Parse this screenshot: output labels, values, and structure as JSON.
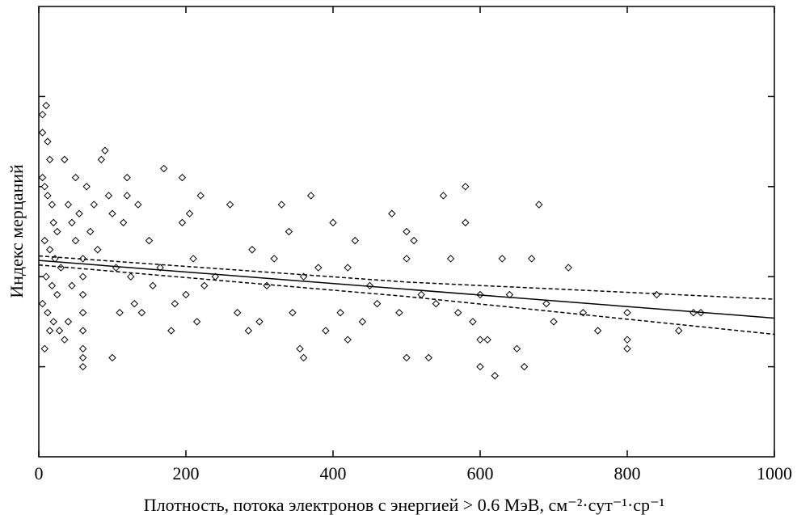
{
  "chart_data": {
    "type": "scatter",
    "xlabel": "Плотность, потока электронов с энергией > 0.6 МэВ, см⁻²·сут⁻¹·ср⁻¹",
    "ylabel": "Индекс мерцаний",
    "xlim": [
      0,
      1000
    ],
    "xticks": [
      0,
      200,
      400,
      600,
      800,
      1000
    ],
    "ylim": [
      0,
      5
    ],
    "yticks": [
      1,
      2,
      3,
      4
    ],
    "x": [
      5,
      5,
      10,
      12,
      15,
      5,
      8,
      12,
      18,
      20,
      25,
      8,
      15,
      22,
      30,
      10,
      18,
      25,
      5,
      12,
      20,
      28,
      35,
      8,
      15,
      40,
      45,
      50,
      35,
      40,
      45,
      50,
      55,
      60,
      60,
      60,
      60,
      60,
      60,
      60,
      60,
      65,
      70,
      75,
      80,
      85,
      90,
      95,
      100,
      100,
      105,
      110,
      115,
      120,
      120,
      125,
      130,
      135,
      140,
      150,
      155,
      165,
      170,
      180,
      185,
      195,
      195,
      200,
      205,
      210,
      215,
      220,
      225,
      240,
      260,
      270,
      285,
      290,
      300,
      310,
      320,
      330,
      340,
      345,
      355,
      360,
      360,
      370,
      380,
      390,
      400,
      410,
      420,
      420,
      430,
      440,
      450,
      460,
      480,
      490,
      500,
      500,
      500,
      510,
      520,
      530,
      540,
      550,
      560,
      570,
      580,
      580,
      590,
      600,
      600,
      600,
      610,
      620,
      630,
      640,
      650,
      660,
      670,
      680,
      690,
      700,
      720,
      740,
      760,
      800,
      800,
      800,
      840,
      870,
      890,
      900
    ],
    "values": [
      3.8,
      3.6,
      3.9,
      3.5,
      3.3,
      3.1,
      3.0,
      2.9,
      2.8,
      2.6,
      2.5,
      2.4,
      2.3,
      2.2,
      2.1,
      2.0,
      1.9,
      1.8,
      1.7,
      1.6,
      1.5,
      1.4,
      1.3,
      1.2,
      1.4,
      1.5,
      1.9,
      2.4,
      3.3,
      2.8,
      2.6,
      3.1,
      2.7,
      2.2,
      2.0,
      1.8,
      1.6,
      1.4,
      1.2,
      1.1,
      1.0,
      3.0,
      2.5,
      2.8,
      2.3,
      3.3,
      3.4,
      2.9,
      2.7,
      1.1,
      2.1,
      1.6,
      2.6,
      2.9,
      3.1,
      2.0,
      1.7,
      2.8,
      1.6,
      2.4,
      1.9,
      2.1,
      3.2,
      1.4,
      1.7,
      3.1,
      2.6,
      1.8,
      2.7,
      2.2,
      1.5,
      2.9,
      1.9,
      2.0,
      2.8,
      1.6,
      1.4,
      2.3,
      1.5,
      1.9,
      2.2,
      2.8,
      2.5,
      1.6,
      1.2,
      2.0,
      1.1,
      2.9,
      2.1,
      1.4,
      2.6,
      1.6,
      2.1,
      1.3,
      2.4,
      1.5,
      1.9,
      1.7,
      2.7,
      1.6,
      2.2,
      2.5,
      1.1,
      2.4,
      1.8,
      1.1,
      1.7,
      2.9,
      2.2,
      1.6,
      2.6,
      3.0,
      1.5,
      1.8,
      1.3,
      1.0,
      1.3,
      0.9,
      2.2,
      1.8,
      1.2,
      1.0,
      2.2,
      2.8,
      1.7,
      1.5,
      2.1,
      1.6,
      1.4,
      1.2,
      1.6,
      1.3,
      1.8,
      1.4,
      1.6,
      1.6
    ],
    "fit": {
      "x": [
        0,
        1000
      ],
      "values": [
        2.18,
        1.54
      ]
    },
    "upper": {
      "x": [
        0,
        500,
        1000
      ],
      "values": [
        2.23,
        1.94,
        1.75
      ]
    },
    "lower": {
      "x": [
        0,
        500,
        1000
      ],
      "values": [
        2.13,
        1.78,
        1.36
      ]
    }
  }
}
